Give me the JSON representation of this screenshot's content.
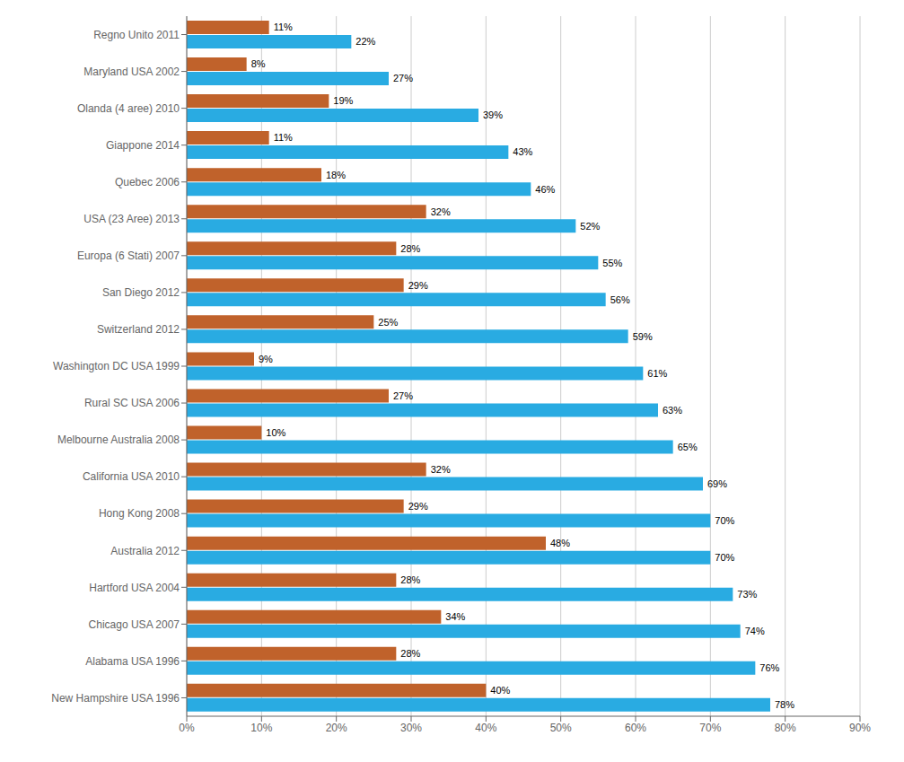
{
  "chart_data": {
    "type": "bar",
    "orientation": "horizontal",
    "categories": [
      "New Hampshire USA 1996",
      "Alabama USA  1996",
      "Chicago  USA  2007",
      "Hartford USA  2004",
      "Australia 2012",
      "Hong Kong 2008",
      "California USA 2010",
      "Melbourne Australia 2008",
      "Rural SC  USA 2006",
      "Washington DC USA 1999",
      "Switzerland 2012",
      "San Diego 2012",
      "Europa (6 Stati) 2007",
      "USA (23 Aree) 2013",
      "Quebec 2006",
      "Giappone 2014",
      "Olanda (4 aree) 2010",
      "Maryland USA 2002",
      "Regno Unito 2011"
    ],
    "series": [
      {
        "color": "#29ABE2",
        "values": [
          78,
          76,
          74,
          73,
          70,
          70,
          69,
          65,
          63,
          61,
          59,
          56,
          55,
          52,
          46,
          43,
          39,
          27,
          22
        ],
        "value_labels": [
          "78%",
          "76%",
          "74%",
          "73%",
          "70%",
          "70%",
          "69%",
          "65%",
          "63%",
          "61%",
          "59%",
          "56%",
          "55%",
          "52%",
          "46%",
          "43%",
          "39%",
          "27%",
          "22%"
        ]
      },
      {
        "color": "#C0622B",
        "values": [
          40,
          28,
          34,
          28,
          48,
          29,
          32,
          10,
          27,
          9,
          25,
          29,
          28,
          32,
          18,
          11,
          19,
          8,
          11
        ],
        "value_labels": [
          "40%",
          "28%",
          "34%",
          "28%",
          "48%",
          "29%",
          "32%",
          "10%",
          "27%",
          "9%",
          "25%",
          "29%",
          "28%",
          "32%",
          "18%",
          "11%",
          "19%",
          "8%",
          "11%"
        ]
      }
    ],
    "xlim": [
      0,
      90
    ],
    "xticks": [
      {
        "value": 0,
        "label": "0%"
      },
      {
        "value": 10,
        "label": "10%"
      },
      {
        "value": 20,
        "label": "20%"
      },
      {
        "value": 30,
        "label": "30%"
      },
      {
        "value": 40,
        "label": "40%"
      },
      {
        "value": 50,
        "label": "50%"
      },
      {
        "value": 60,
        "label": "60%"
      },
      {
        "value": 70,
        "label": "70%"
      },
      {
        "value": 80,
        "label": "80%"
      },
      {
        "value": 90,
        "label": "90%"
      }
    ],
    "grid": true,
    "data_labels": true
  }
}
